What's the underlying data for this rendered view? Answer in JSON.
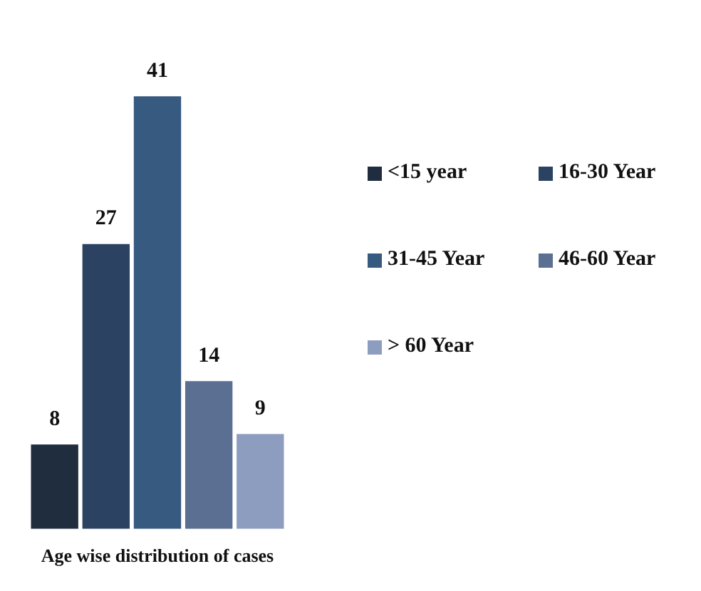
{
  "chart_data": {
    "type": "bar",
    "xlabel": "Age wise distribution of cases",
    "categories": [
      null
    ],
    "series": [
      {
        "name": "<15 year",
        "color": "#1f2d3f",
        "values": [
          8
        ]
      },
      {
        "name": "16-30 Year",
        "color": "#2b4263",
        "values": [
          27
        ]
      },
      {
        "name": "31-45 Year",
        "color": "#365a80",
        "values": [
          41
        ]
      },
      {
        "name": "46-60 Year",
        "color": "#5a6f91",
        "values": [
          14
        ]
      },
      {
        "name": "> 60 Year",
        "color": "#8d9dc0",
        "values": [
          9
        ]
      }
    ],
    "data_labels": true,
    "legend": "right"
  }
}
